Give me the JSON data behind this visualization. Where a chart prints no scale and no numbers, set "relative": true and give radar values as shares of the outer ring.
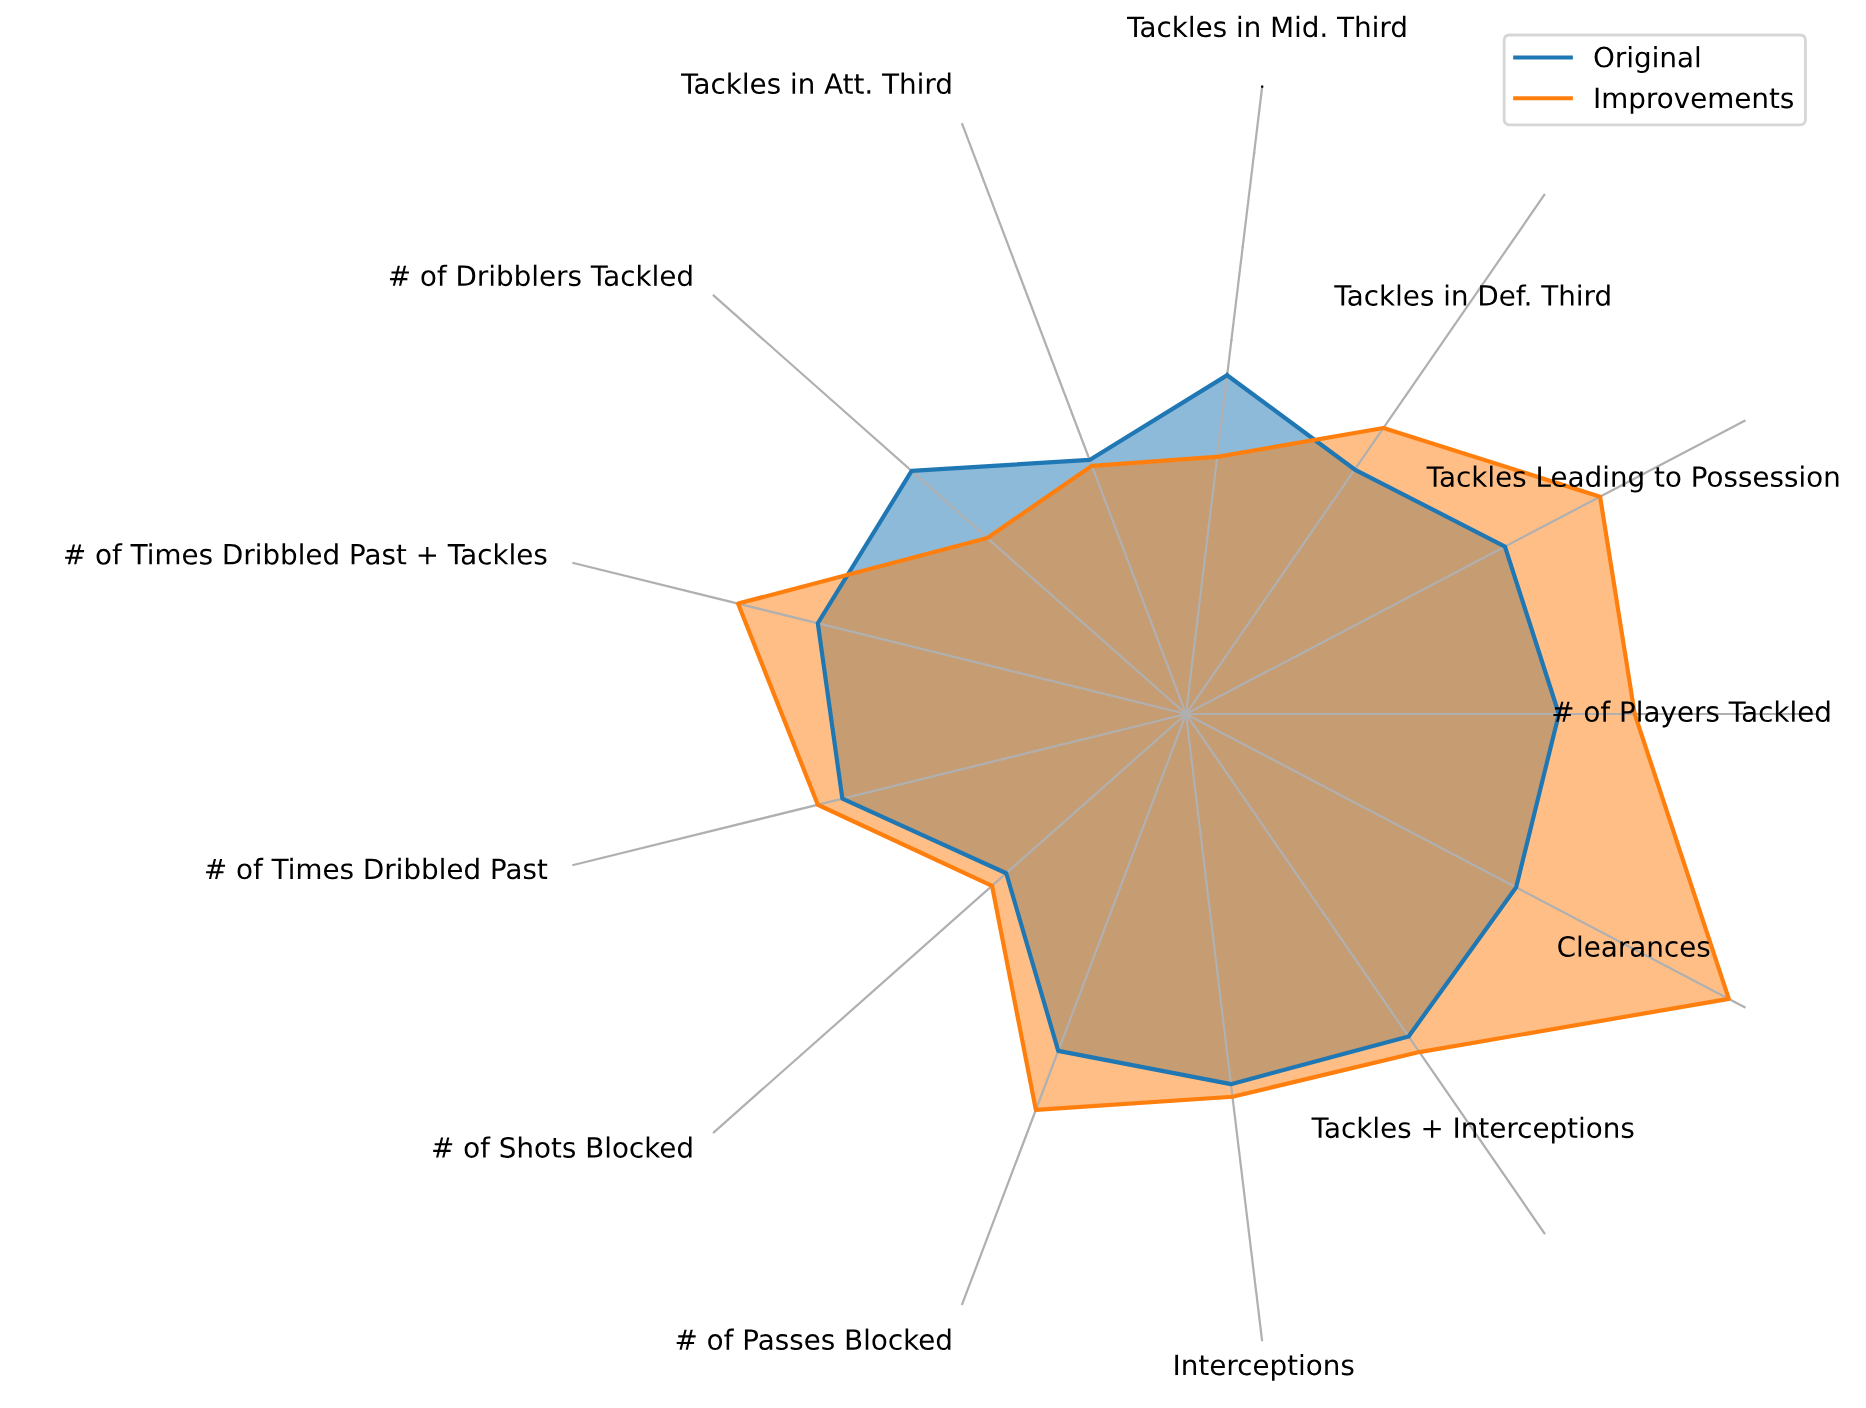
{
  "chart_data": {
    "type": "radar",
    "relative": true,
    "grid": true,
    "legend": "top right",
    "categories": [
      "Tackles in Mid. Third",
      "Tackles in Def. Third",
      "Tackles Leading to Possession",
      "# of Players Tackled",
      "Clearances",
      "Tackles + Interceptions",
      "Interceptions",
      "# of Passes Blocked",
      "# of Shots Blocked",
      "# of Times Dribbled Past",
      "# of Times Dribbled Past + Tackles",
      "# of Dribblers Tackled",
      "Tackles in Att. Third"
    ],
    "series": [
      {
        "name": "Original",
        "color": "#1f77b4",
        "values": [
          0.54,
          0.47,
          0.57,
          0.59,
          0.59,
          0.62,
          0.59,
          0.57,
          0.38,
          0.56,
          0.6,
          0.58,
          0.43
        ]
      },
      {
        "name": "Improvements",
        "color": "#ff7f0e",
        "values": [
          0.41,
          0.55,
          0.74,
          0.71,
          0.97,
          0.65,
          0.61,
          0.67,
          0.41,
          0.6,
          0.73,
          0.42,
          0.42
        ]
      }
    ]
  }
}
